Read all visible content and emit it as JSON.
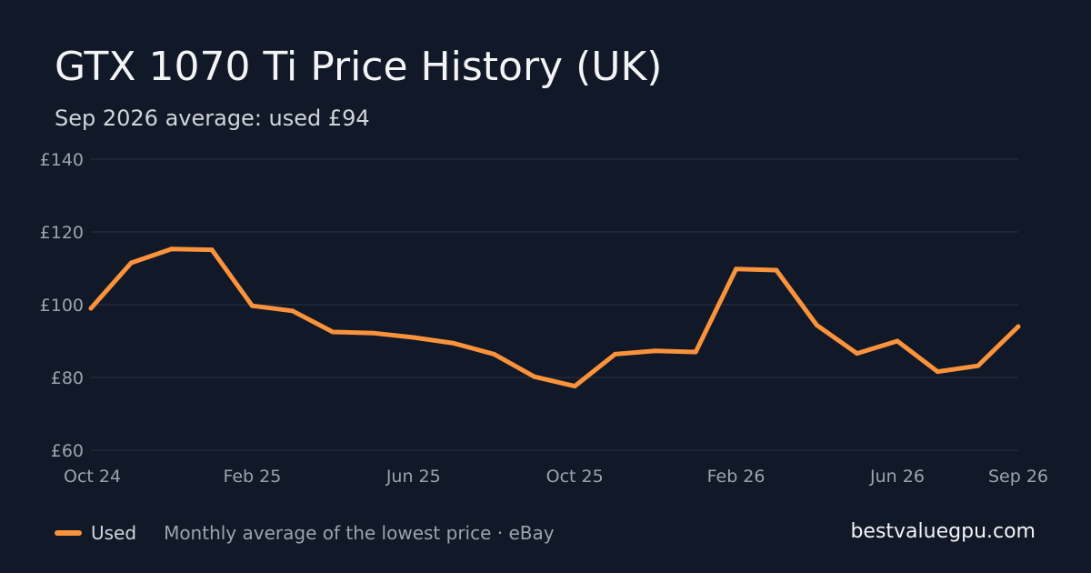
{
  "header": {
    "title": "GTX 1070 Ti Price History (UK)",
    "subtitle": "Sep 2026 average: used £94"
  },
  "legend": {
    "label": "Used",
    "description": "Monthly average of the lowest price · eBay"
  },
  "brand": "bestvaluegpu.com",
  "colors": {
    "background": "#111827",
    "line": "#fb923c",
    "grid": "#2a3242",
    "tick_text": "#9ca3af"
  },
  "chart_data": {
    "type": "line",
    "title": "GTX 1070 Ti Price History (UK)",
    "subtitle": "Sep 2026 average: used £94",
    "x": [
      "Oct 24",
      "Nov 24",
      "Dec 24",
      "Jan 25",
      "Feb 25",
      "Mar 25",
      "Apr 25",
      "May 25",
      "Jun 25",
      "Jul 25",
      "Aug 25",
      "Sep 25",
      "Oct 25",
      "Nov 25",
      "Dec 25",
      "Jan 26",
      "Feb 26",
      "Mar 26",
      "Apr 26",
      "May 26",
      "Jun 26",
      "Jul 26",
      "Aug 26",
      "Sep 26"
    ],
    "x_tick_labels": [
      "Oct 24",
      "Feb 25",
      "Jun 25",
      "Oct 25",
      "Feb 26",
      "Jun 26",
      "Sep 26"
    ],
    "y_tick_labels": [
      "£60",
      "£80",
      "£100",
      "£120",
      "£140"
    ],
    "y_ticks": [
      60,
      80,
      100,
      120,
      140
    ],
    "ylim": [
      60,
      140
    ],
    "grid": true,
    "legend_position": "bottom-left",
    "series": [
      {
        "name": "Used",
        "values": [
          99,
          111.5,
          115.3,
          115.1,
          99.7,
          98.3,
          92.5,
          92.2,
          91,
          89.4,
          86.4,
          80.2,
          77.6,
          86.4,
          87.3,
          87,
          109.8,
          109.5,
          94.4,
          86.6,
          90,
          81.6,
          83.2,
          94
        ]
      }
    ]
  }
}
